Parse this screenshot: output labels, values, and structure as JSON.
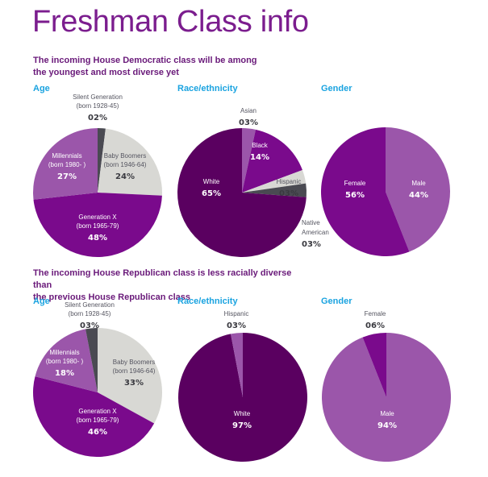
{
  "title": "Freshman Class info",
  "colors": {
    "silent": "#4a4a52",
    "boomers": "#d8d8d4",
    "genx": "#7a0a8c",
    "millennials": "#9b56aa",
    "white": "#5a0060",
    "black": "#7a0a8c",
    "asian": "#9b56aa",
    "hispanic": "#d8d8d4",
    "native": "#4a4a52",
    "female": "#7a0a8c",
    "male": "#9b56aa",
    "title": "#7b1d8e",
    "section": "#1aa3e0"
  },
  "sections": [
    {
      "headline": [
        "The incoming House Democratic class will be among",
        "the youngest and most diverse yet"
      ],
      "headers": {
        "age": "Age",
        "race": "Race/ethnicity",
        "gender": "Gender"
      }
    },
    {
      "headline": [
        "The incoming House Republican class is less racially diverse than",
        "the previous House Republican class"
      ],
      "headers": {
        "age": "Age",
        "race": "Race/ethnicity",
        "gender": "Gender"
      }
    }
  ],
  "chart_data": [
    {
      "type": "pie",
      "title": "Democratic — Age",
      "slices": [
        {
          "label": "Silent Generation",
          "sub": "(born 1928-45)",
          "value": 2,
          "pct": "02%",
          "color": "silent"
        },
        {
          "label": "Baby Boomers",
          "sub": "(born 1946-64)",
          "value": 24,
          "pct": "24%",
          "color": "boomers"
        },
        {
          "label": "Generation X",
          "sub": "(born 1965-79)",
          "value": 48,
          "pct": "48%",
          "color": "genx"
        },
        {
          "label": "Millennials",
          "sub": "(born 1980- )",
          "value": 27,
          "pct": "27%",
          "color": "millennials"
        }
      ]
    },
    {
      "type": "pie",
      "title": "Democratic — Race/ethnicity",
      "slices": [
        {
          "label": "Asian",
          "value": 3,
          "pct": "03%",
          "color": "asian"
        },
        {
          "label": "Black",
          "value": 14,
          "pct": "14%",
          "color": "black"
        },
        {
          "label": "Hispanic",
          "value": 3,
          "pct": "03%",
          "color": "hispanic"
        },
        {
          "label": "Native American",
          "value": 3,
          "pct": "03%",
          "color": "native"
        },
        {
          "label": "White",
          "value": 65,
          "pct": "65%",
          "color": "white"
        }
      ]
    },
    {
      "type": "pie",
      "title": "Democratic — Gender",
      "slices": [
        {
          "label": "Male",
          "value": 44,
          "pct": "44%",
          "color": "male"
        },
        {
          "label": "Female",
          "value": 56,
          "pct": "56%",
          "color": "female"
        }
      ]
    },
    {
      "type": "pie",
      "title": "Republican — Age",
      "slices": [
        {
          "label": "Baby Boomers",
          "sub": "(born 1946-64)",
          "value": 33,
          "pct": "33%",
          "color": "boomers"
        },
        {
          "label": "Generation X",
          "sub": "(born 1965-79)",
          "value": 46,
          "pct": "46%",
          "color": "genx"
        },
        {
          "label": "Millennials",
          "sub": "(born 1980- )",
          "value": 18,
          "pct": "18%",
          "color": "millennials"
        },
        {
          "label": "Silent Generation",
          "sub": "(born 1928-45)",
          "value": 3,
          "pct": "03%",
          "color": "silent"
        }
      ]
    },
    {
      "type": "pie",
      "title": "Republican — Race/ethnicity",
      "slices": [
        {
          "label": "White",
          "value": 97,
          "pct": "97%",
          "color": "white"
        },
        {
          "label": "Hispanic",
          "value": 3,
          "pct": "03%",
          "color": "asian"
        }
      ]
    },
    {
      "type": "pie",
      "title": "Republican — Gender",
      "slices": [
        {
          "label": "Male",
          "value": 94,
          "pct": "94%",
          "color": "male"
        },
        {
          "label": "Female",
          "value": 6,
          "pct": "06%",
          "color": "female"
        }
      ]
    }
  ]
}
